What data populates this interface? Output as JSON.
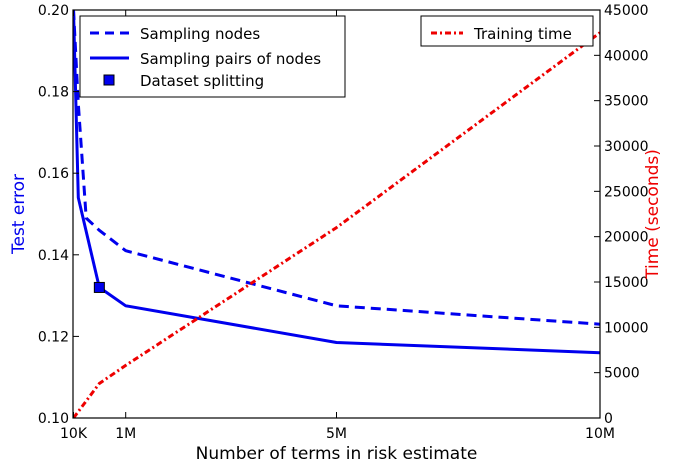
{
  "chart_data": {
    "type": "line",
    "xlabel": "Number of terms in risk estimate",
    "x_tick_labels": [
      "10K",
      "1M",
      "5M",
      "10M"
    ],
    "x_tick_values": [
      10000,
      1000000,
      5000000,
      10000000
    ],
    "xlim": [
      0,
      10000000
    ],
    "left_axis": {
      "label": "Test error",
      "color": "#0000ee",
      "ylim": [
        0.1,
        0.2
      ],
      "ticks": [
        0.1,
        0.12,
        0.14,
        0.16,
        0.18,
        0.2
      ],
      "tick_labels": [
        "0.10",
        "0.12",
        "0.14",
        "0.16",
        "0.18",
        "0.20"
      ]
    },
    "right_axis": {
      "label": "Time (seconds)",
      "color": "#ee0000",
      "ylim": [
        0,
        45000
      ],
      "ticks": [
        0,
        5000,
        10000,
        15000,
        20000,
        25000,
        30000,
        35000,
        40000,
        45000
      ],
      "tick_labels": [
        "0",
        "5000",
        "10000",
        "15000",
        "20000",
        "25000",
        "30000",
        "35000",
        "40000",
        "45000"
      ]
    },
    "series": [
      {
        "name": "Sampling nodes",
        "axis": "left",
        "style": "dashed",
        "color": "#0000ee",
        "x": [
          10000,
          100000,
          250000,
          500000,
          1000000,
          5000000,
          10000000
        ],
        "y": [
          0.2,
          0.177,
          0.149,
          0.146,
          0.141,
          0.1275,
          0.123
        ]
      },
      {
        "name": "Sampling pairs of nodes",
        "axis": "left",
        "style": "solid",
        "color": "#0000ee",
        "x": [
          10000,
          100000,
          500000,
          1000000,
          5000000,
          10000000
        ],
        "y": [
          0.2,
          0.154,
          0.132,
          0.1275,
          0.1185,
          0.116
        ]
      },
      {
        "name": "Dataset splitting",
        "axis": "left",
        "style": "marker",
        "color": "#0000ee",
        "x": [
          500000
        ],
        "y": [
          0.132
        ]
      },
      {
        "name": "Training time",
        "axis": "right",
        "style": "dashdot",
        "color": "#ee0000",
        "x": [
          10000,
          500000,
          1000000,
          5000000,
          10000000
        ],
        "y": [
          0,
          3800,
          5800,
          21000,
          42500
        ]
      }
    ]
  }
}
